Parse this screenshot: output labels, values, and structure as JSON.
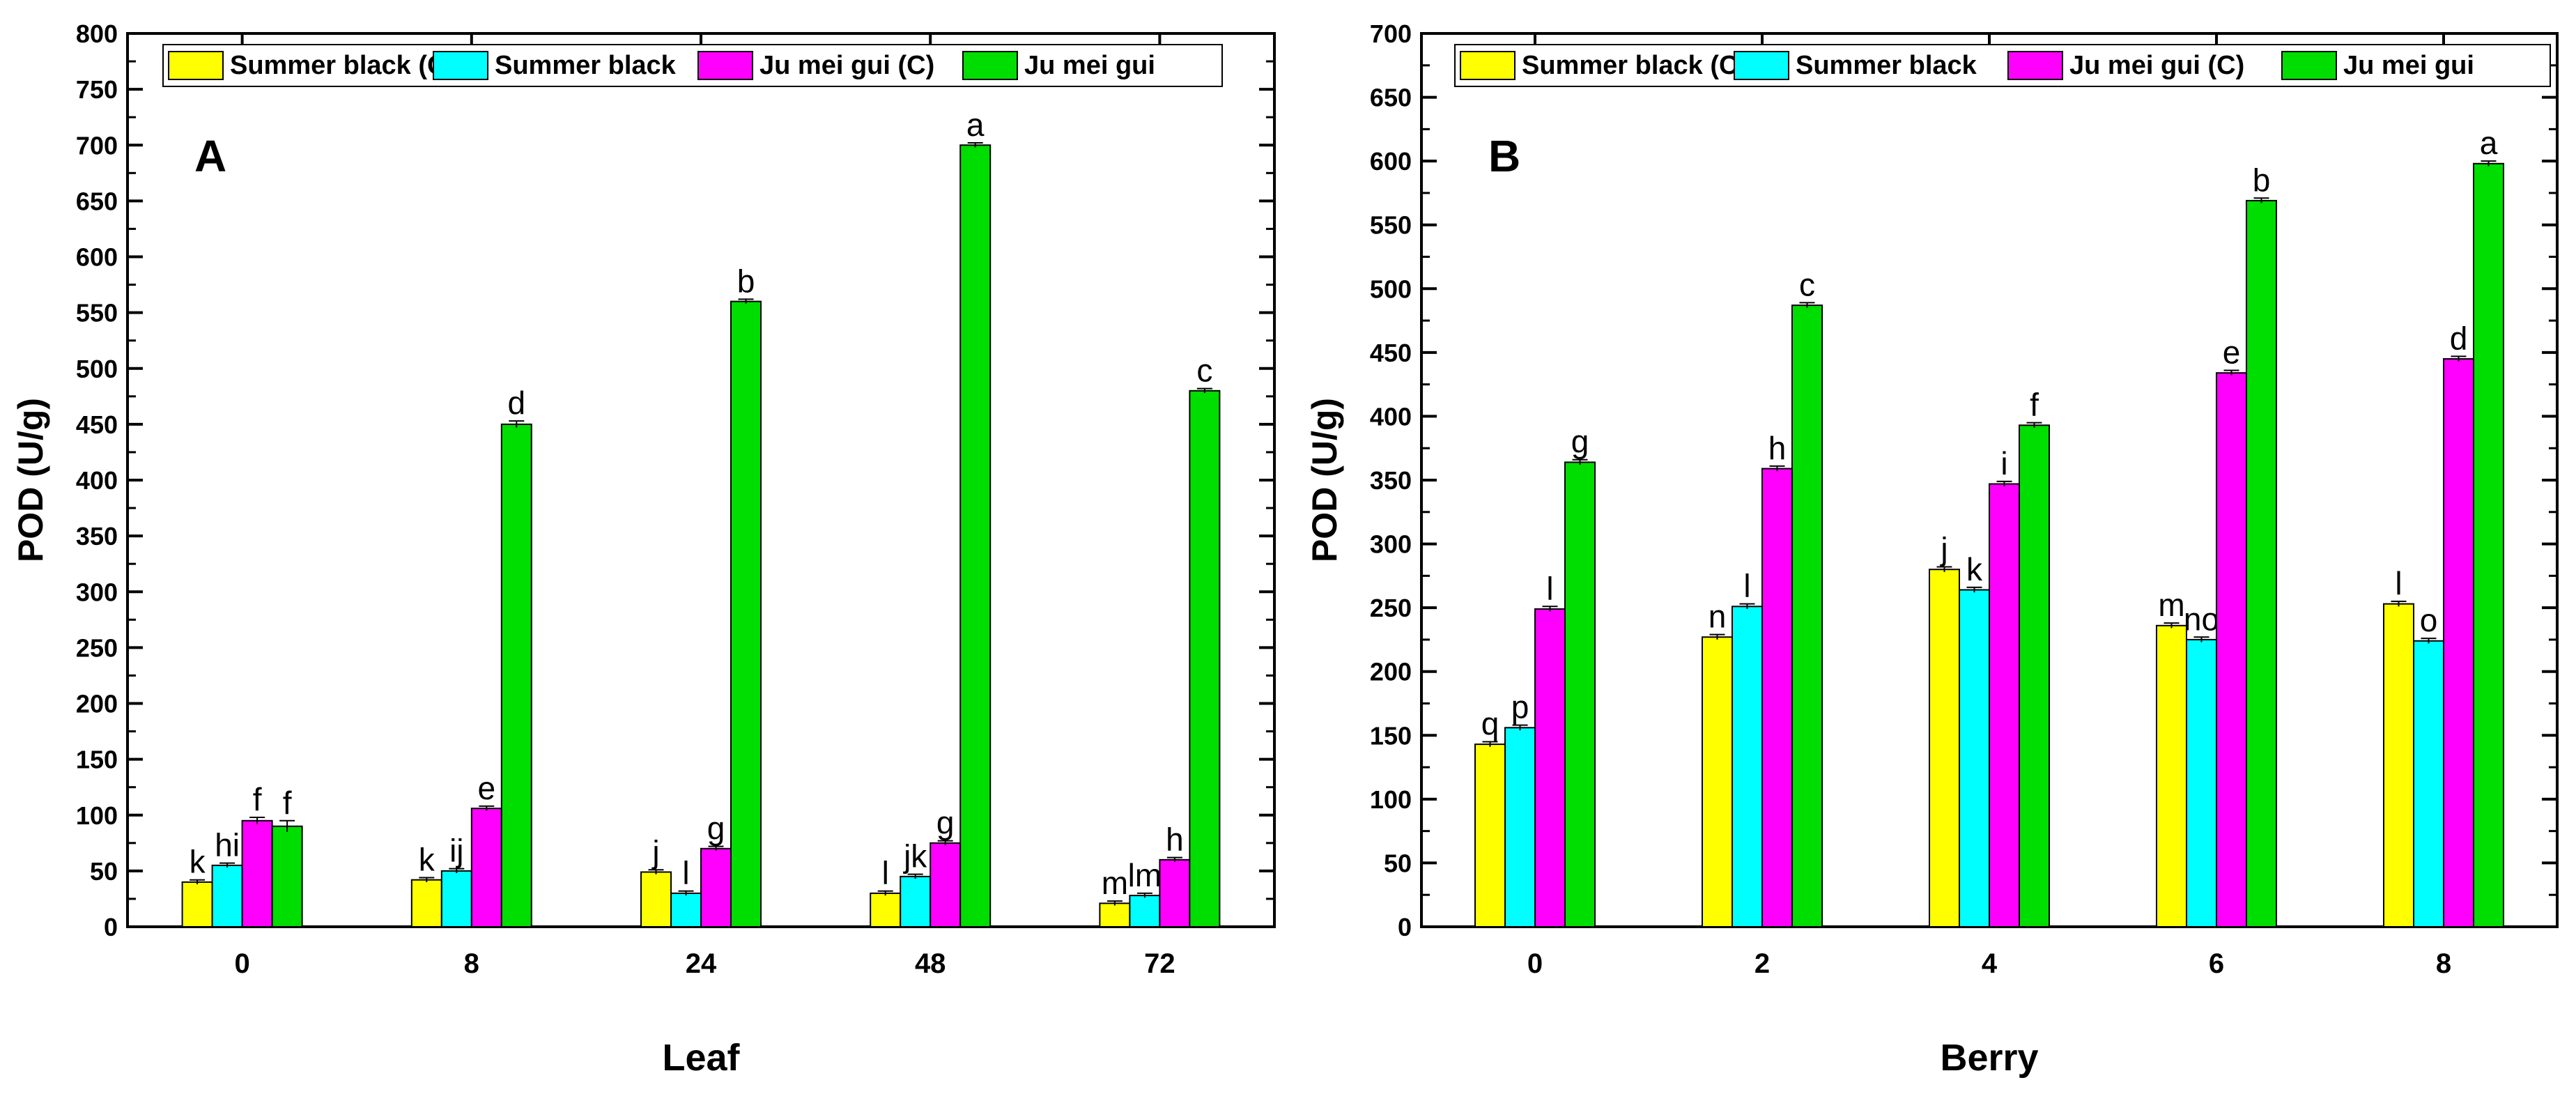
{
  "chart_data": [
    {
      "type": "bar",
      "panel_label": "A",
      "xlabel": "Leaf",
      "ylabel": "POD (U/g)",
      "categories": [
        "0",
        "8",
        "24",
        "48",
        "72"
      ],
      "ylim": [
        0,
        800
      ],
      "yticks": [
        0,
        50,
        100,
        150,
        200,
        250,
        300,
        350,
        400,
        450,
        500,
        550,
        600,
        650,
        700,
        750,
        800
      ],
      "legend_position": "top",
      "series": [
        {
          "name": "Summer black (C)",
          "color": "#FFFF00",
          "values": [
            40,
            42,
            49,
            30,
            21
          ],
          "errors": [
            2,
            2,
            2,
            2,
            2
          ],
          "letters": [
            "k",
            "k",
            "j",
            "l",
            "m"
          ]
        },
        {
          "name": "Summer black",
          "color": "#00FFFF",
          "values": [
            55,
            50,
            30,
            45,
            28
          ],
          "errors": [
            2,
            2,
            2,
            2,
            2
          ],
          "letters": [
            "hi",
            "ij",
            "l",
            "jk",
            "lm"
          ]
        },
        {
          "name": "Ju mei gui (C)",
          "color": "#FF00FF",
          "values": [
            95,
            106,
            70,
            75,
            60
          ],
          "errors": [
            3,
            2,
            2,
            2,
            2
          ],
          "letters": [
            "f",
            "e",
            "g",
            "g",
            "h"
          ]
        },
        {
          "name": "Ju mei gui",
          "color": "#00DD00",
          "values": [
            90,
            450,
            560,
            700,
            480
          ],
          "errors": [
            5,
            3,
            2,
            2,
            2
          ],
          "letters": [
            "f",
            "d",
            "b",
            "a",
            "c"
          ]
        }
      ]
    },
    {
      "type": "bar",
      "panel_label": "B",
      "xlabel": "Berry",
      "ylabel": "POD (U/g)",
      "categories": [
        "0",
        "2",
        "4",
        "6",
        "8"
      ],
      "ylim": [
        0,
        700
      ],
      "yticks": [
        0,
        50,
        100,
        150,
        200,
        250,
        300,
        350,
        400,
        450,
        500,
        550,
        600,
        650,
        700
      ],
      "legend_position": "top",
      "series": [
        {
          "name": "Summer black (C)",
          "color": "#FFFF00",
          "values": [
            143,
            227,
            280,
            236,
            253
          ],
          "errors": [
            2,
            2,
            2,
            2,
            2
          ],
          "letters": [
            "q",
            "n",
            "j",
            "m",
            "l"
          ]
        },
        {
          "name": "Summer black",
          "color": "#00FFFF",
          "values": [
            156,
            251,
            264,
            225,
            224
          ],
          "errors": [
            2,
            2,
            2,
            2,
            2
          ],
          "letters": [
            "p",
            "l",
            "k",
            "no",
            "o"
          ]
        },
        {
          "name": "Ju mei gui (C)",
          "color": "#FF00FF",
          "values": [
            249,
            359,
            347,
            434,
            445
          ],
          "errors": [
            2,
            2,
            2,
            2,
            2
          ],
          "letters": [
            "l",
            "h",
            "i",
            "e",
            "d"
          ]
        },
        {
          "name": "Ju mei gui",
          "color": "#00DD00",
          "values": [
            364,
            487,
            393,
            569,
            598
          ],
          "errors": [
            2,
            2,
            2,
            2,
            2
          ],
          "letters": [
            "g",
            "c",
            "f",
            "b",
            "a"
          ]
        }
      ]
    }
  ]
}
